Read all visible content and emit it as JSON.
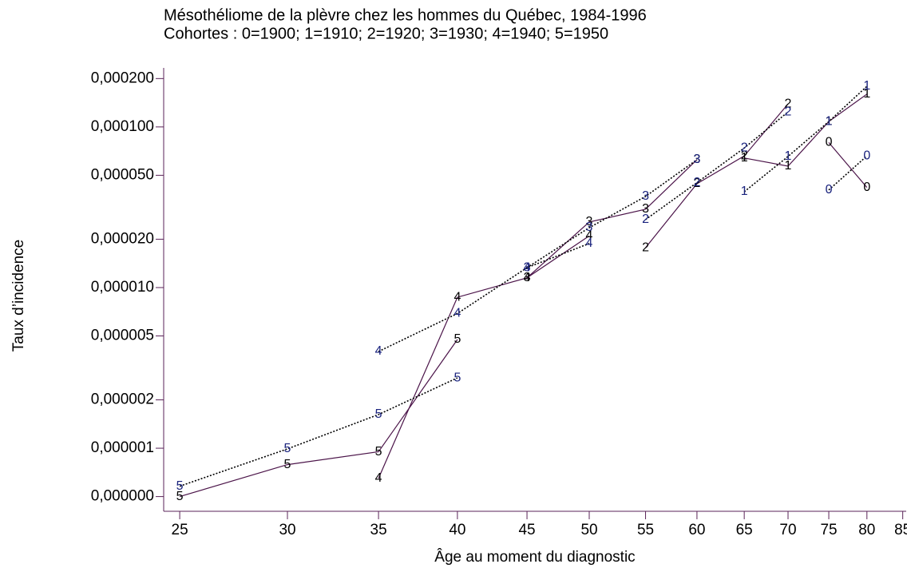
{
  "chart_data": {
    "type": "line",
    "title": "Mésothéliome de la plèvre chez les hommes du Québec, 1984-1996",
    "subtitle": "Cohortes : 0=1900; 1=1910; 2=1920; 3=1930; 4=1940; 5=1950",
    "x_label": "Âge au moment du diagnostic",
    "y_label": "Taux d’incidence",
    "log_x": true,
    "log_y": true,
    "xlim": [
      24.33,
      85.5
    ],
    "ylim": [
      4.05e-07,
      0.000233
    ],
    "xticks": [
      25,
      30,
      35,
      40,
      45,
      50,
      55,
      60,
      65,
      70,
      75,
      80,
      85
    ],
    "yticks": [
      {
        "value": 5e-07,
        "label": "0,000000"
      },
      {
        "value": 1e-06,
        "label": "0,000001"
      },
      {
        "value": 2e-06,
        "label": "0,000002"
      },
      {
        "value": 5e-06,
        "label": "0,000005"
      },
      {
        "value": 1e-05,
        "label": "0,000010"
      },
      {
        "value": 2e-05,
        "label": "0,000020"
      },
      {
        "value": 5e-05,
        "label": "0,000050"
      },
      {
        "value": 0.0001,
        "label": "0,000100"
      },
      {
        "value": 0.0002,
        "label": "0,000200"
      }
    ],
    "axis_color": "#5a2358",
    "series": [
      {
        "name": "5",
        "style": "solid",
        "color": "#4b1449",
        "label_color": "#000000",
        "x": [
          25,
          30,
          35,
          40
        ],
        "values": [
          5e-07,
          7.9e-07,
          9.5e-07,
          4.75e-06
        ]
      },
      {
        "name": "4",
        "style": "solid",
        "color": "#4b1449",
        "label_color": "#000000",
        "x": [
          35,
          40,
          45,
          50
        ],
        "values": [
          6.5e-07,
          8.7e-06,
          1.15e-05,
          2.1e-05
        ]
      },
      {
        "name": "3",
        "style": "solid",
        "color": "#4b1449",
        "label_color": "#000000",
        "x": [
          45,
          50,
          55,
          60
        ],
        "values": [
          1.15e-05,
          2.56e-05,
          3.07e-05,
          6.25e-05
        ]
      },
      {
        "name": "2",
        "style": "solid",
        "color": "#4b1449",
        "label_color": "#000000",
        "x": [
          55,
          60,
          65,
          70
        ],
        "values": [
          1.77e-05,
          4.43e-05,
          6.6e-05,
          0.000139
        ]
      },
      {
        "name": "1",
        "style": "solid",
        "color": "#4b1449",
        "label_color": "#000000",
        "x": [
          65,
          70,
          75,
          80
        ],
        "values": [
          6.4e-05,
          5.7e-05,
          0.000108,
          0.00016
        ]
      },
      {
        "name": "0",
        "style": "solid",
        "color": "#4b1449",
        "label_color": "#000000",
        "x": [
          75,
          80
        ],
        "values": [
          8e-05,
          4.2e-05
        ]
      },
      {
        "name": "5",
        "style": "dotted",
        "color": "#000000",
        "label_color": "#1a237e",
        "x": [
          25,
          30,
          35,
          40
        ],
        "values": [
          5.8e-07,
          9.9e-07,
          1.62e-06,
          2.74e-06
        ]
      },
      {
        "name": "4",
        "style": "dotted",
        "color": "#000000",
        "label_color": "#1a237e",
        "x": [
          35,
          40,
          45,
          50
        ],
        "values": [
          4e-06,
          6.9e-06,
          1.33e-05,
          1.88e-05
        ]
      },
      {
        "name": "3",
        "style": "dotted",
        "color": "#000000",
        "label_color": "#1a237e",
        "x": [
          45,
          50,
          55,
          60
        ],
        "values": [
          1.33e-05,
          2.36e-05,
          3.69e-05,
          6.25e-05
        ]
      },
      {
        "name": "2",
        "style": "dotted",
        "color": "#000000",
        "label_color": "#1a237e",
        "x": [
          55,
          60,
          65,
          70
        ],
        "values": [
          2.65e-05,
          4.5e-05,
          7.4e-05,
          0.000124
        ]
      },
      {
        "name": "1",
        "style": "dotted",
        "color": "#000000",
        "label_color": "#1a237e",
        "x": [
          65,
          70,
          75,
          80
        ],
        "values": [
          3.95e-05,
          6.55e-05,
          0.000108,
          0.000179
        ]
      },
      {
        "name": "0",
        "style": "dotted",
        "color": "#000000",
        "label_color": "#1a237e",
        "x": [
          75,
          80
        ],
        "values": [
          4.05e-05,
          6.6e-05
        ]
      }
    ]
  }
}
